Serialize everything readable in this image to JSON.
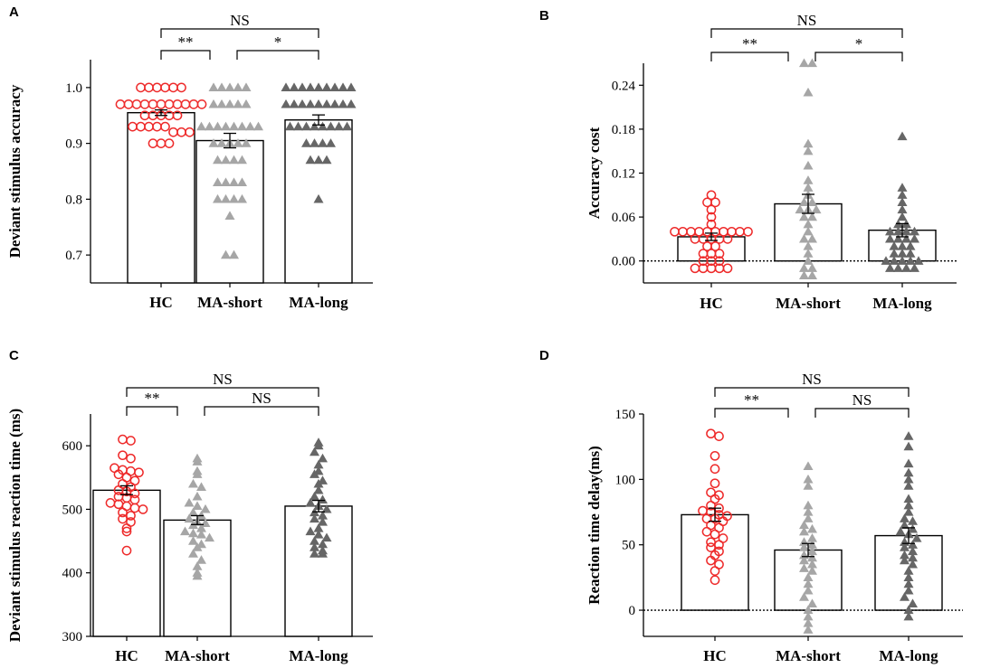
{
  "chart_data": [
    {
      "panel": "A",
      "type": "bar",
      "categories": [
        "HC",
        "MA-short",
        "MA-long"
      ],
      "ylabel": "Deviant stimulus accuracy",
      "ylim": [
        0.65,
        1.05
      ],
      "yticks": [
        0.7,
        0.8,
        0.9,
        1.0
      ],
      "ytick_labels": [
        "0.7",
        "0.8",
        "0.9",
        "1.0"
      ],
      "zero_line": false,
      "means": [
        0.955,
        0.905,
        0.942
      ],
      "sems": [
        0.005,
        0.013,
        0.009
      ],
      "points": [
        [
          1.0,
          1.0,
          1.0,
          1.0,
          1.0,
          1.0,
          0.97,
          0.97,
          0.97,
          0.97,
          0.97,
          0.97,
          0.97,
          0.97,
          0.97,
          0.97,
          0.97,
          0.95,
          0.95,
          0.95,
          0.95,
          0.95,
          0.93,
          0.93,
          0.93,
          0.93,
          0.93,
          0.92,
          0.92,
          0.92,
          0.9,
          0.9,
          0.9
        ],
        [
          1.0,
          1.0,
          1.0,
          1.0,
          1.0,
          0.97,
          0.97,
          0.97,
          0.97,
          0.97,
          0.93,
          0.93,
          0.93,
          0.93,
          0.93,
          0.93,
          0.93,
          0.93,
          0.9,
          0.9,
          0.9,
          0.9,
          0.9,
          0.87,
          0.87,
          0.87,
          0.87,
          0.83,
          0.83,
          0.83,
          0.83,
          0.8,
          0.8,
          0.8,
          0.8,
          0.77,
          0.7,
          0.7
        ],
        [
          1.0,
          1.0,
          1.0,
          1.0,
          1.0,
          1.0,
          1.0,
          1.0,
          1.0,
          0.97,
          0.97,
          0.97,
          0.97,
          0.97,
          0.97,
          0.97,
          0.97,
          0.97,
          0.93,
          0.93,
          0.93,
          0.93,
          0.93,
          0.93,
          0.93,
          0.93,
          0.9,
          0.9,
          0.9,
          0.9,
          0.87,
          0.87,
          0.87,
          0.8
        ]
      ],
      "brackets": [
        {
          "from": 0,
          "to": 2,
          "label": "NS",
          "level": 1
        },
        {
          "from": 0,
          "to": 1,
          "label": "**",
          "level": 0
        },
        {
          "from": 1,
          "to": 2,
          "label": "*",
          "level": 0
        }
      ]
    },
    {
      "panel": "B",
      "type": "bar",
      "categories": [
        "HC",
        "MA-short",
        "MA-long"
      ],
      "ylabel": "Accuracy cost",
      "ylim": [
        -0.03,
        0.27
      ],
      "yticks": [
        0.0,
        0.06,
        0.12,
        0.18,
        0.24
      ],
      "ytick_labels": [
        "0.00",
        "0.06",
        "0.12",
        "0.18",
        "0.24"
      ],
      "zero_line": true,
      "means": [
        0.033,
        0.078,
        0.042
      ],
      "sems": [
        0.005,
        0.013,
        0.009
      ],
      "points": [
        [
          0.09,
          0.08,
          0.08,
          0.07,
          0.06,
          0.05,
          0.04,
          0.04,
          0.04,
          0.04,
          0.04,
          0.04,
          0.04,
          0.04,
          0.04,
          0.04,
          0.03,
          0.03,
          0.03,
          0.03,
          0.03,
          0.02,
          0.02,
          0.01,
          0.01,
          0.01,
          0.0,
          0.0,
          0.0,
          -0.01,
          -0.01,
          -0.01,
          -0.01,
          -0.01
        ],
        [
          0.27,
          0.27,
          0.23,
          0.16,
          0.15,
          0.13,
          0.11,
          0.1,
          0.09,
          0.08,
          0.08,
          0.07,
          0.07,
          0.07,
          0.06,
          0.06,
          0.05,
          0.04,
          0.03,
          0.03,
          0.02,
          0.01,
          0.0,
          -0.01,
          -0.01,
          -0.02,
          -0.02
        ],
        [
          0.17,
          0.1,
          0.09,
          0.08,
          0.07,
          0.06,
          0.05,
          0.05,
          0.04,
          0.04,
          0.04,
          0.04,
          0.03,
          0.03,
          0.03,
          0.03,
          0.02,
          0.02,
          0.02,
          0.01,
          0.01,
          0.01,
          0.0,
          0.0,
          0.0,
          0.0,
          0.0,
          -0.01,
          -0.01,
          -0.01,
          -0.01
        ]
      ],
      "brackets": [
        {
          "from": 0,
          "to": 2,
          "label": "NS",
          "level": 1
        },
        {
          "from": 0,
          "to": 1,
          "label": "**",
          "level": 0
        },
        {
          "from": 1,
          "to": 2,
          "label": "*",
          "level": 0
        }
      ]
    },
    {
      "panel": "C",
      "type": "bar",
      "categories": [
        "HC",
        "MA-short",
        "MA-long"
      ],
      "ylabel": "Deviant stimulus reaction time (ms)",
      "ylim": [
        300,
        650
      ],
      "yticks": [
        300,
        400,
        500,
        600
      ],
      "ytick_labels": [
        "300",
        "400",
        "500",
        "600"
      ],
      "zero_line": false,
      "means": [
        530,
        483,
        505
      ],
      "sems": [
        7,
        7,
        9
      ],
      "points": [
        [
          610,
          608,
          585,
          580,
          565,
          562,
          560,
          558,
          555,
          550,
          545,
          540,
          535,
          530,
          528,
          525,
          520,
          518,
          515,
          510,
          508,
          505,
          502,
          500,
          495,
          490,
          485,
          480,
          470,
          465,
          435
        ],
        [
          580,
          575,
          560,
          555,
          540,
          535,
          520,
          510,
          505,
          500,
          495,
          490,
          485,
          480,
          478,
          475,
          470,
          465,
          462,
          460,
          455,
          450,
          445,
          440,
          430,
          420,
          410,
          400,
          395
        ],
        [
          605,
          600,
          590,
          580,
          570,
          560,
          555,
          545,
          540,
          530,
          520,
          515,
          510,
          505,
          500,
          495,
          490,
          485,
          480,
          470,
          465,
          460,
          455,
          450,
          445,
          440,
          435,
          430,
          430
        ]
      ],
      "brackets": [
        {
          "from": 0,
          "to": 2,
          "label": "NS",
          "level": 1
        },
        {
          "from": 0,
          "to": 1,
          "label": "**",
          "level": 0
        },
        {
          "from": 1,
          "to": 2,
          "label": "NS",
          "level": 0
        }
      ]
    },
    {
      "panel": "D",
      "type": "bar",
      "categories": [
        "HC",
        "MA-short",
        "MA-long"
      ],
      "ylabel": "Reaction time delay(ms)",
      "ylim": [
        -20,
        150
      ],
      "yticks": [
        0,
        50,
        100,
        150
      ],
      "ytick_labels": [
        "0",
        "50",
        "100",
        "150"
      ],
      "zero_line": true,
      "means": [
        73,
        46,
        57
      ],
      "sems": [
        5,
        5,
        6
      ],
      "points": [
        [
          135,
          133,
          118,
          108,
          97,
          90,
          88,
          85,
          80,
          78,
          76,
          75,
          73,
          72,
          70,
          70,
          68,
          65,
          63,
          60,
          58,
          55,
          52,
          50,
          48,
          45,
          42,
          38,
          35,
          30,
          23
        ],
        [
          110,
          100,
          95,
          80,
          75,
          70,
          65,
          62,
          60,
          55,
          52,
          50,
          48,
          45,
          42,
          40,
          38,
          35,
          32,
          30,
          25,
          20,
          15,
          10,
          5,
          0,
          -5,
          -10,
          -15
        ],
        [
          133,
          125,
          112,
          105,
          100,
          95,
          85,
          80,
          75,
          70,
          68,
          65,
          62,
          60,
          58,
          55,
          52,
          50,
          48,
          45,
          42,
          40,
          38,
          35,
          30,
          25,
          20,
          15,
          10,
          5,
          0,
          -5
        ]
      ],
      "brackets": [
        {
          "from": 0,
          "to": 2,
          "label": "NS",
          "level": 1
        },
        {
          "from": 0,
          "to": 1,
          "label": "**",
          "level": 0
        },
        {
          "from": 1,
          "to": 2,
          "label": "NS",
          "level": 0
        }
      ]
    }
  ],
  "colors": {
    "hc": "#ee2a2a",
    "ma_short": "#a6a6a6",
    "ma_long": "#666666",
    "axis": "#000000"
  },
  "marker_shapes": [
    "circle-open",
    "triangle-filled",
    "triangle-filled"
  ]
}
